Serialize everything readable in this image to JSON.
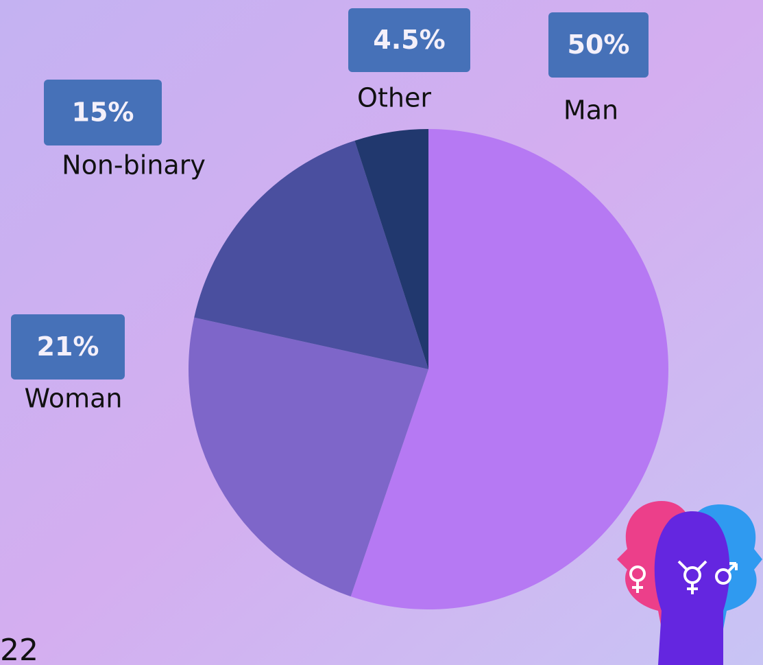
{
  "chart_data": {
    "type": "pie",
    "categories": [
      "Man",
      "Woman",
      "Non-binary",
      "Other"
    ],
    "values": [
      50,
      21,
      15,
      4.5
    ],
    "value_labels": [
      "50%",
      "21%",
      "15%",
      "4.5%"
    ],
    "colors": [
      "#b679f3",
      "#7e66c9",
      "#4a4f9f",
      "#21386e"
    ]
  },
  "page_number": "22"
}
